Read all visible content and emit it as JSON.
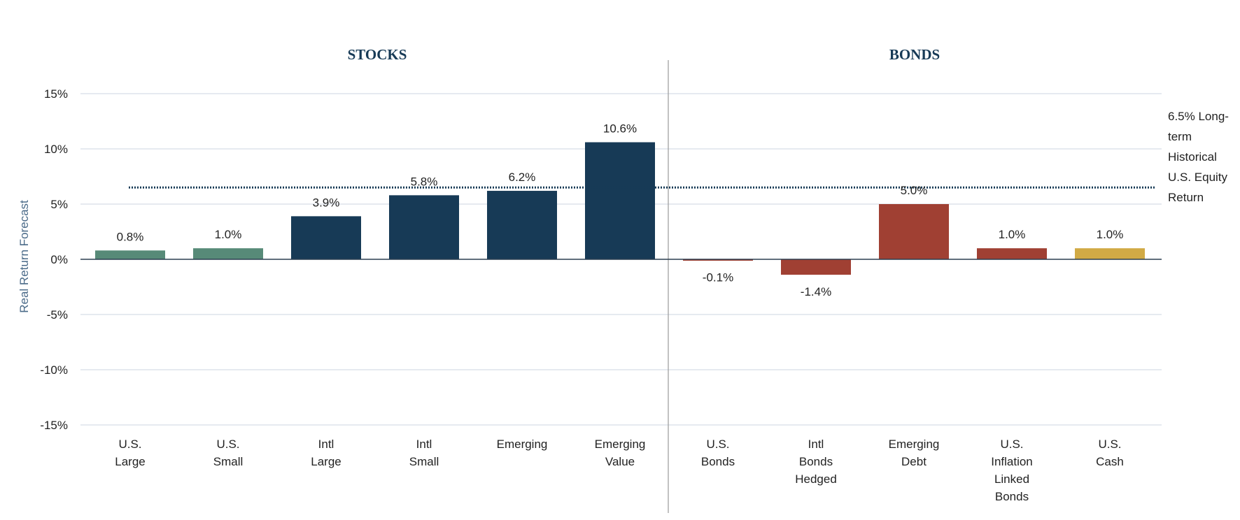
{
  "chart_data": {
    "type": "bar",
    "title": "",
    "ylabel": "Real Return Forecast",
    "xlabel": "",
    "ylim": [
      -15,
      15
    ],
    "yticks": [
      15,
      10,
      5,
      0,
      -5,
      -10,
      -15
    ],
    "ytick_labels": [
      "15%",
      "10%",
      "5%",
      "0%",
      "-5%",
      "-10%",
      "-15%"
    ],
    "grid": true,
    "sections": [
      {
        "label": "STOCKS",
        "categories": [
          0,
          1,
          2,
          3,
          4,
          5
        ]
      },
      {
        "label": "BONDS",
        "categories": [
          6,
          7,
          8,
          9,
          10
        ]
      }
    ],
    "categories": [
      [
        "U.S.",
        "Large"
      ],
      [
        "U.S.",
        "Small"
      ],
      [
        "Intl",
        "Large"
      ],
      [
        "Intl",
        "Small"
      ],
      [
        "Emerging"
      ],
      [
        "Emerging",
        "Value"
      ],
      [
        "U.S.",
        "Bonds"
      ],
      [
        "Intl",
        "Bonds",
        "Hedged"
      ],
      [
        "Emerging",
        "Debt"
      ],
      [
        "U.S.",
        "Inflation",
        "Linked",
        "Bonds"
      ],
      [
        "U.S.",
        "Cash"
      ]
    ],
    "values": [
      0.8,
      1.0,
      3.9,
      5.8,
      6.2,
      10.6,
      -0.1,
      -1.4,
      5.0,
      1.0,
      1.0
    ],
    "data_labels": [
      "0.8%",
      "1.0%",
      "3.9%",
      "5.8%",
      "6.2%",
      "10.6%",
      "-0.1%",
      "-1.4%",
      "5.0%",
      "1.0%",
      "1.0%"
    ],
    "bar_colors": [
      "#578a78",
      "#578a78",
      "#173a56",
      "#173a56",
      "#173a56",
      "#173a56",
      "#a04033",
      "#a04033",
      "#a04033",
      "#a04033",
      "#d1aa45"
    ],
    "reference_line": {
      "value": 6.5,
      "style": "dotted",
      "color": "#173a56",
      "label": [
        "6.5% Long-",
        "term",
        "Historical",
        "U.S. Equity",
        "Return"
      ]
    }
  }
}
